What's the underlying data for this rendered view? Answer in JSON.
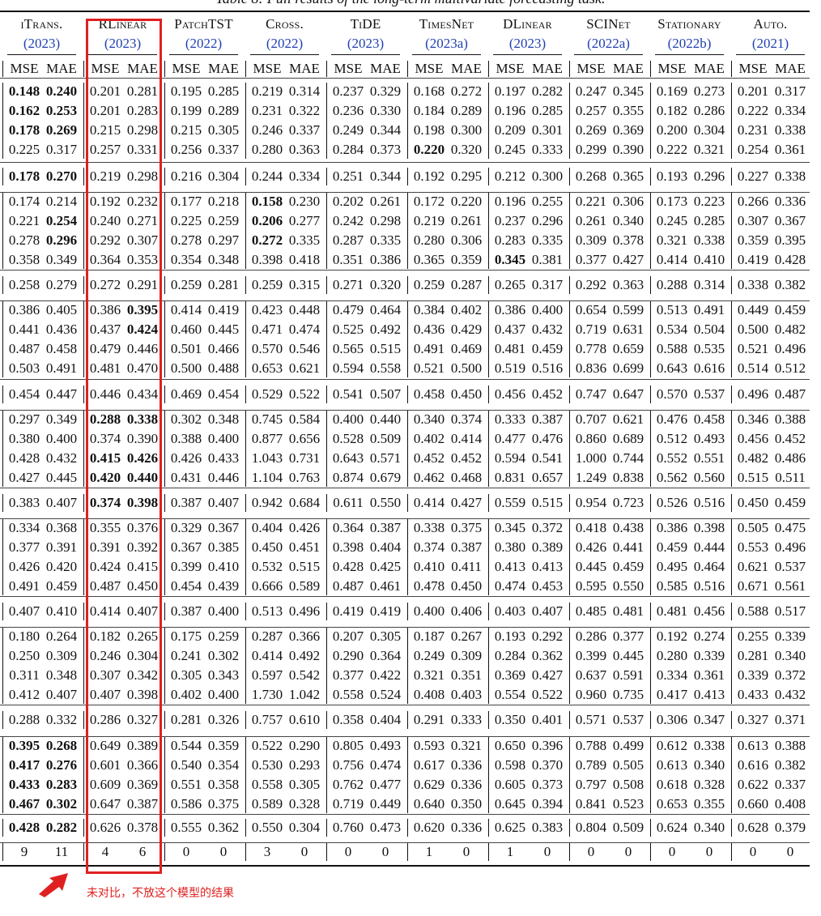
{
  "caption": "Table 8: Full results of the long-term multivariate forecasting task.",
  "models": [
    {
      "name": "iTrans.",
      "year": "(2023)"
    },
    {
      "name": "RLinear",
      "year": "(2023)"
    },
    {
      "name": "PatchTST",
      "year": "(2022)"
    },
    {
      "name": "Cross.",
      "year": "(2022)"
    },
    {
      "name": "TiDE",
      "year": "(2023)"
    },
    {
      "name": "TimesNet",
      "year": "(2023a)"
    },
    {
      "name": "DLinear",
      "year": "(2023)"
    },
    {
      "name": "SCINet",
      "year": "(2022a)"
    },
    {
      "name": "Stationary",
      "year": "(2022b)"
    },
    {
      "name": "Auto.",
      "year": "(2021)"
    }
  ],
  "metric_labels": [
    "MSE",
    "MAE"
  ],
  "rows": [
    [
      "0.148",
      "0.240",
      "0.201",
      "0.281",
      "0.195",
      "0.285",
      "0.219",
      "0.314",
      "0.237",
      "0.329",
      "0.168",
      "0.272",
      "0.197",
      "0.282",
      "0.247",
      "0.345",
      "0.169",
      "0.273",
      "0.201",
      "0.317"
    ],
    [
      "0.162",
      "0.253",
      "0.201",
      "0.283",
      "0.199",
      "0.289",
      "0.231",
      "0.322",
      "0.236",
      "0.330",
      "0.184",
      "0.289",
      "0.196",
      "0.285",
      "0.257",
      "0.355",
      "0.182",
      "0.286",
      "0.222",
      "0.334"
    ],
    [
      "0.178",
      "0.269",
      "0.215",
      "0.298",
      "0.215",
      "0.305",
      "0.246",
      "0.337",
      "0.249",
      "0.344",
      "0.198",
      "0.300",
      "0.209",
      "0.301",
      "0.269",
      "0.369",
      "0.200",
      "0.304",
      "0.231",
      "0.338"
    ],
    [
      "0.225",
      "0.317",
      "0.257",
      "0.331",
      "0.256",
      "0.337",
      "0.280",
      "0.363",
      "0.284",
      "0.373",
      "0.220",
      "0.320",
      "0.245",
      "0.333",
      "0.299",
      "0.390",
      "0.222",
      "0.321",
      "0.254",
      "0.361"
    ],
    [
      "0.178",
      "0.270",
      "0.219",
      "0.298",
      "0.216",
      "0.304",
      "0.244",
      "0.334",
      "0.251",
      "0.344",
      "0.192",
      "0.295",
      "0.212",
      "0.300",
      "0.268",
      "0.365",
      "0.193",
      "0.296",
      "0.227",
      "0.338"
    ],
    [
      "0.174",
      "0.214",
      "0.192",
      "0.232",
      "0.177",
      "0.218",
      "0.158",
      "0.230",
      "0.202",
      "0.261",
      "0.172",
      "0.220",
      "0.196",
      "0.255",
      "0.221",
      "0.306",
      "0.173",
      "0.223",
      "0.266",
      "0.336"
    ],
    [
      "0.221",
      "0.254",
      "0.240",
      "0.271",
      "0.225",
      "0.259",
      "0.206",
      "0.277",
      "0.242",
      "0.298",
      "0.219",
      "0.261",
      "0.237",
      "0.296",
      "0.261",
      "0.340",
      "0.245",
      "0.285",
      "0.307",
      "0.367"
    ],
    [
      "0.278",
      "0.296",
      "0.292",
      "0.307",
      "0.278",
      "0.297",
      "0.272",
      "0.335",
      "0.287",
      "0.335",
      "0.280",
      "0.306",
      "0.283",
      "0.335",
      "0.309",
      "0.378",
      "0.321",
      "0.338",
      "0.359",
      "0.395"
    ],
    [
      "0.358",
      "0.349",
      "0.364",
      "0.353",
      "0.354",
      "0.348",
      "0.398",
      "0.418",
      "0.351",
      "0.386",
      "0.365",
      "0.359",
      "0.345",
      "0.381",
      "0.377",
      "0.427",
      "0.414",
      "0.410",
      "0.419",
      "0.428"
    ],
    [
      "0.258",
      "0.279",
      "0.272",
      "0.291",
      "0.259",
      "0.281",
      "0.259",
      "0.315",
      "0.271",
      "0.320",
      "0.259",
      "0.287",
      "0.265",
      "0.317",
      "0.292",
      "0.363",
      "0.288",
      "0.314",
      "0.338",
      "0.382"
    ],
    [
      "0.386",
      "0.405",
      "0.386",
      "0.395",
      "0.414",
      "0.419",
      "0.423",
      "0.448",
      "0.479",
      "0.464",
      "0.384",
      "0.402",
      "0.386",
      "0.400",
      "0.654",
      "0.599",
      "0.513",
      "0.491",
      "0.449",
      "0.459"
    ],
    [
      "0.441",
      "0.436",
      "0.437",
      "0.424",
      "0.460",
      "0.445",
      "0.471",
      "0.474",
      "0.525",
      "0.492",
      "0.436",
      "0.429",
      "0.437",
      "0.432",
      "0.719",
      "0.631",
      "0.534",
      "0.504",
      "0.500",
      "0.482"
    ],
    [
      "0.487",
      "0.458",
      "0.479",
      "0.446",
      "0.501",
      "0.466",
      "0.570",
      "0.546",
      "0.565",
      "0.515",
      "0.491",
      "0.469",
      "0.481",
      "0.459",
      "0.778",
      "0.659",
      "0.588",
      "0.535",
      "0.521",
      "0.496"
    ],
    [
      "0.503",
      "0.491",
      "0.481",
      "0.470",
      "0.500",
      "0.488",
      "0.653",
      "0.621",
      "0.594",
      "0.558",
      "0.521",
      "0.500",
      "0.519",
      "0.516",
      "0.836",
      "0.699",
      "0.643",
      "0.616",
      "0.514",
      "0.512"
    ],
    [
      "0.454",
      "0.447",
      "0.446",
      "0.434",
      "0.469",
      "0.454",
      "0.529",
      "0.522",
      "0.541",
      "0.507",
      "0.458",
      "0.450",
      "0.456",
      "0.452",
      "0.747",
      "0.647",
      "0.570",
      "0.537",
      "0.496",
      "0.487"
    ],
    [
      "0.297",
      "0.349",
      "0.288",
      "0.338",
      "0.302",
      "0.348",
      "0.745",
      "0.584",
      "0.400",
      "0.440",
      "0.340",
      "0.374",
      "0.333",
      "0.387",
      "0.707",
      "0.621",
      "0.476",
      "0.458",
      "0.346",
      "0.388"
    ],
    [
      "0.380",
      "0.400",
      "0.374",
      "0.390",
      "0.388",
      "0.400",
      "0.877",
      "0.656",
      "0.528",
      "0.509",
      "0.402",
      "0.414",
      "0.477",
      "0.476",
      "0.860",
      "0.689",
      "0.512",
      "0.493",
      "0.456",
      "0.452"
    ],
    [
      "0.428",
      "0.432",
      "0.415",
      "0.426",
      "0.426",
      "0.433",
      "1.043",
      "0.731",
      "0.643",
      "0.571",
      "0.452",
      "0.452",
      "0.594",
      "0.541",
      "1.000",
      "0.744",
      "0.552",
      "0.551",
      "0.482",
      "0.486"
    ],
    [
      "0.427",
      "0.445",
      "0.420",
      "0.440",
      "0.431",
      "0.446",
      "1.104",
      "0.763",
      "0.874",
      "0.679",
      "0.462",
      "0.468",
      "0.831",
      "0.657",
      "1.249",
      "0.838",
      "0.562",
      "0.560",
      "0.515",
      "0.511"
    ],
    [
      "0.383",
      "0.407",
      "0.374",
      "0.398",
      "0.387",
      "0.407",
      "0.942",
      "0.684",
      "0.611",
      "0.550",
      "0.414",
      "0.427",
      "0.559",
      "0.515",
      "0.954",
      "0.723",
      "0.526",
      "0.516",
      "0.450",
      "0.459"
    ],
    [
      "0.334",
      "0.368",
      "0.355",
      "0.376",
      "0.329",
      "0.367",
      "0.404",
      "0.426",
      "0.364",
      "0.387",
      "0.338",
      "0.375",
      "0.345",
      "0.372",
      "0.418",
      "0.438",
      "0.386",
      "0.398",
      "0.505",
      "0.475"
    ],
    [
      "0.377",
      "0.391",
      "0.391",
      "0.392",
      "0.367",
      "0.385",
      "0.450",
      "0.451",
      "0.398",
      "0.404",
      "0.374",
      "0.387",
      "0.380",
      "0.389",
      "0.426",
      "0.441",
      "0.459",
      "0.444",
      "0.553",
      "0.496"
    ],
    [
      "0.426",
      "0.420",
      "0.424",
      "0.415",
      "0.399",
      "0.410",
      "0.532",
      "0.515",
      "0.428",
      "0.425",
      "0.410",
      "0.411",
      "0.413",
      "0.413",
      "0.445",
      "0.459",
      "0.495",
      "0.464",
      "0.621",
      "0.537"
    ],
    [
      "0.491",
      "0.459",
      "0.487",
      "0.450",
      "0.454",
      "0.439",
      "0.666",
      "0.589",
      "0.487",
      "0.461",
      "0.478",
      "0.450",
      "0.474",
      "0.453",
      "0.595",
      "0.550",
      "0.585",
      "0.516",
      "0.671",
      "0.561"
    ],
    [
      "0.407",
      "0.410",
      "0.414",
      "0.407",
      "0.387",
      "0.400",
      "0.513",
      "0.496",
      "0.419",
      "0.419",
      "0.400",
      "0.406",
      "0.403",
      "0.407",
      "0.485",
      "0.481",
      "0.481",
      "0.456",
      "0.588",
      "0.517"
    ],
    [
      "0.180",
      "0.264",
      "0.182",
      "0.265",
      "0.175",
      "0.259",
      "0.287",
      "0.366",
      "0.207",
      "0.305",
      "0.187",
      "0.267",
      "0.193",
      "0.292",
      "0.286",
      "0.377",
      "0.192",
      "0.274",
      "0.255",
      "0.339"
    ],
    [
      "0.250",
      "0.309",
      "0.246",
      "0.304",
      "0.241",
      "0.302",
      "0.414",
      "0.492",
      "0.290",
      "0.364",
      "0.249",
      "0.309",
      "0.284",
      "0.362",
      "0.399",
      "0.445",
      "0.280",
      "0.339",
      "0.281",
      "0.340"
    ],
    [
      "0.311",
      "0.348",
      "0.307",
      "0.342",
      "0.305",
      "0.343",
      "0.597",
      "0.542",
      "0.377",
      "0.422",
      "0.321",
      "0.351",
      "0.369",
      "0.427",
      "0.637",
      "0.591",
      "0.334",
      "0.361",
      "0.339",
      "0.372"
    ],
    [
      "0.412",
      "0.407",
      "0.407",
      "0.398",
      "0.402",
      "0.400",
      "1.730",
      "1.042",
      "0.558",
      "0.524",
      "0.408",
      "0.403",
      "0.554",
      "0.522",
      "0.960",
      "0.735",
      "0.417",
      "0.413",
      "0.433",
      "0.432"
    ],
    [
      "0.288",
      "0.332",
      "0.286",
      "0.327",
      "0.281",
      "0.326",
      "0.757",
      "0.610",
      "0.358",
      "0.404",
      "0.291",
      "0.333",
      "0.350",
      "0.401",
      "0.571",
      "0.537",
      "0.306",
      "0.347",
      "0.327",
      "0.371"
    ],
    [
      "0.395",
      "0.268",
      "0.649",
      "0.389",
      "0.544",
      "0.359",
      "0.522",
      "0.290",
      "0.805",
      "0.493",
      "0.593",
      "0.321",
      "0.650",
      "0.396",
      "0.788",
      "0.499",
      "0.612",
      "0.338",
      "0.613",
      "0.388"
    ],
    [
      "0.417",
      "0.276",
      "0.601",
      "0.366",
      "0.540",
      "0.354",
      "0.530",
      "0.293",
      "0.756",
      "0.474",
      "0.617",
      "0.336",
      "0.598",
      "0.370",
      "0.789",
      "0.505",
      "0.613",
      "0.340",
      "0.616",
      "0.382"
    ],
    [
      "0.433",
      "0.283",
      "0.609",
      "0.369",
      "0.551",
      "0.358",
      "0.558",
      "0.305",
      "0.762",
      "0.477",
      "0.629",
      "0.336",
      "0.605",
      "0.373",
      "0.797",
      "0.508",
      "0.618",
      "0.328",
      "0.622",
      "0.337"
    ],
    [
      "0.467",
      "0.302",
      "0.647",
      "0.387",
      "0.586",
      "0.375",
      "0.589",
      "0.328",
      "0.719",
      "0.449",
      "0.640",
      "0.350",
      "0.645",
      "0.394",
      "0.841",
      "0.523",
      "0.653",
      "0.355",
      "0.660",
      "0.408"
    ],
    [
      "0.428",
      "0.282",
      "0.626",
      "0.378",
      "0.555",
      "0.362",
      "0.550",
      "0.304",
      "0.760",
      "0.473",
      "0.620",
      "0.336",
      "0.625",
      "0.383",
      "0.804",
      "0.509",
      "0.624",
      "0.340",
      "0.628",
      "0.379"
    ],
    [
      "9",
      "11",
      "4",
      "6",
      "0",
      "0",
      "3",
      "0",
      "0",
      "0",
      "1",
      "0",
      "1",
      "0",
      "0",
      "0",
      "0",
      "0",
      "0",
      "0"
    ]
  ],
  "bold": [
    [
      0,
      0
    ],
    [
      0,
      1
    ],
    [
      1,
      0
    ],
    [
      1,
      1
    ],
    [
      2,
      0
    ],
    [
      2,
      1
    ],
    [
      3,
      10
    ],
    [
      4,
      0
    ],
    [
      4,
      1
    ],
    [
      5,
      6
    ],
    [
      6,
      1
    ],
    [
      6,
      6
    ],
    [
      7,
      1
    ],
    [
      7,
      6
    ],
    [
      8,
      12
    ],
    [
      10,
      3
    ],
    [
      11,
      3
    ],
    [
      15,
      2
    ],
    [
      15,
      3
    ],
    [
      17,
      2
    ],
    [
      17,
      3
    ],
    [
      18,
      2
    ],
    [
      18,
      3
    ],
    [
      19,
      2
    ],
    [
      19,
      3
    ],
    [
      30,
      0
    ],
    [
      30,
      1
    ],
    [
      31,
      0
    ],
    [
      31,
      1
    ],
    [
      32,
      0
    ],
    [
      32,
      1
    ],
    [
      33,
      0
    ],
    [
      33,
      1
    ],
    [
      34,
      0
    ],
    [
      34,
      1
    ]
  ],
  "annotation": {
    "note": "未对比，不放这个模型的结果",
    "highlight_color": "#e02020"
  }
}
